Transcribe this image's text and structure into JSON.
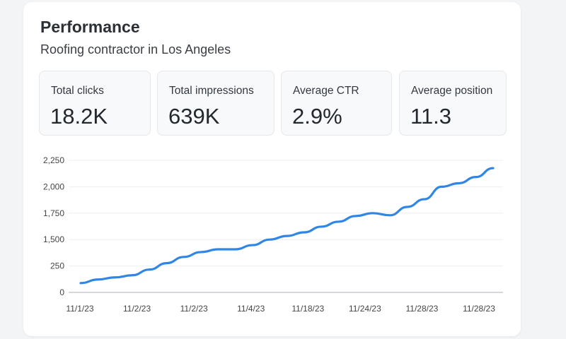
{
  "header": {
    "title": "Performance",
    "subtitle": "Roofing contractor in Los Angeles"
  },
  "stats": [
    {
      "label": "Total clicks",
      "value": "18.2K"
    },
    {
      "label": "Total impressions",
      "value": "639K"
    },
    {
      "label": "Average CTR",
      "value": "2.9%"
    },
    {
      "label": "Average position",
      "value": "11.3"
    }
  ],
  "chart_data": {
    "type": "line",
    "title": "",
    "xlabel": "",
    "ylabel": "",
    "grid": true,
    "line_color": "#2f86e6",
    "y_tick_labels": [
      "0",
      "250",
      "1,500",
      "1,750",
      "2,000",
      "2,250"
    ],
    "y_ticks": [
      0,
      250,
      1500,
      1750,
      2000,
      2250
    ],
    "x_tick_labels": [
      "11/1/23",
      "11/2/23",
      "11/2/23",
      "11/4/23",
      "11/18/23",
      "11/24/23",
      "11/28/23",
      "11/28/23"
    ],
    "series": [
      {
        "values": [
          88,
          122,
          142,
          162,
          216,
          382,
          678,
          908,
          1039,
          1039,
          1237,
          1500,
          1534,
          1568,
          1622,
          1669,
          1723,
          1750,
          1730,
          1809,
          1882,
          2000,
          2033,
          2092,
          2176
        ]
      }
    ]
  }
}
